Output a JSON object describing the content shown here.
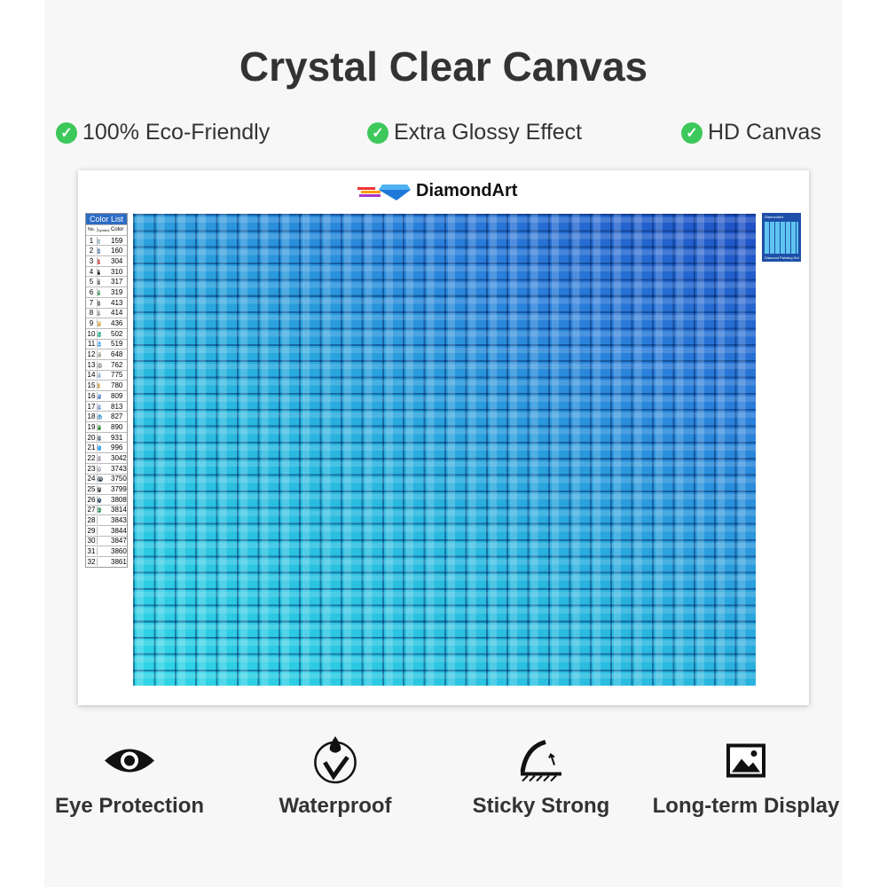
{
  "title": "Crystal Clear Canvas",
  "features": [
    "100% Eco-Friendly",
    "Extra Glossy Effect",
    "HD Canvas"
  ],
  "brand": "DiamondArt",
  "color_list": {
    "title": "Color List",
    "headers": [
      "No.",
      "Symbol",
      "Color"
    ],
    "rows": [
      [
        "1",
        "1",
        "159"
      ],
      [
        "2",
        "2",
        "160"
      ],
      [
        "3",
        "3",
        "304"
      ],
      [
        "4",
        "4",
        "310"
      ],
      [
        "5",
        "5",
        "317"
      ],
      [
        "6",
        "6",
        "319"
      ],
      [
        "7",
        "7",
        "413"
      ],
      [
        "8",
        "8",
        "414"
      ],
      [
        "9",
        "A",
        "436"
      ],
      [
        "10",
        "C",
        "502"
      ],
      [
        "11",
        "D",
        "519"
      ],
      [
        "12",
        "F",
        "648"
      ],
      [
        "13",
        "G",
        "762"
      ],
      [
        "14",
        "H",
        "775"
      ],
      [
        "15",
        "J",
        "780"
      ],
      [
        "16",
        "K",
        "809"
      ],
      [
        "17",
        "N",
        "813"
      ],
      [
        "18",
        "Q",
        "827"
      ],
      [
        "19",
        "R",
        "890"
      ],
      [
        "20",
        "S",
        "931"
      ],
      [
        "21",
        "T",
        "996"
      ],
      [
        "22",
        "U",
        "3042"
      ],
      [
        "23",
        "V",
        "3743"
      ],
      [
        "24",
        "W",
        "3750"
      ],
      [
        "25",
        "X",
        "3799"
      ],
      [
        "26",
        "Y",
        "3808"
      ],
      [
        "27",
        "Z",
        "3814"
      ],
      [
        "28",
        "",
        "3843"
      ],
      [
        "29",
        "",
        "3844"
      ],
      [
        "30",
        "",
        "3847"
      ],
      [
        "31",
        "",
        "3860"
      ],
      [
        "32",
        "",
        "3861"
      ]
    ]
  },
  "thumbnail": {
    "brand": "DiamondArt",
    "caption": "Diamond Painting Set"
  },
  "bottom_features": [
    {
      "label": "Eye Protection",
      "icon": "eye-icon"
    },
    {
      "label": "Waterproof",
      "icon": "water-drop-check-icon"
    },
    {
      "label": "Sticky Strong",
      "icon": "peel-adhesive-icon"
    },
    {
      "label": "Long-term Display",
      "icon": "picture-icon"
    }
  ],
  "colors": {
    "check": "#3cc85a",
    "canvas_light": "#2fd6e6",
    "canvas_dark": "#1f4fc4"
  }
}
